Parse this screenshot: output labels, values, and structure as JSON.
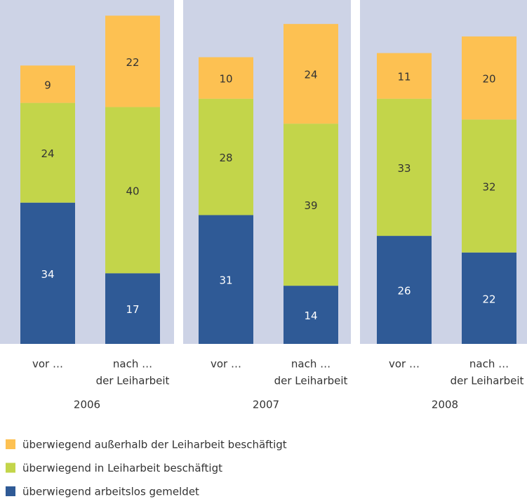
{
  "chart_data": {
    "type": "bar",
    "stacked": true,
    "groups": [
      "2006",
      "2007",
      "2008"
    ],
    "categories": [
      "vor …",
      "nach …",
      "vor …",
      "nach …",
      "vor …",
      "nach …"
    ],
    "category_notes": [
      null,
      "der Leiharbeit",
      null,
      "der Leiharbeit",
      null,
      "der Leiharbeit"
    ],
    "series": [
      {
        "name": "überwiegend arbeitslos gemeldet",
        "color": "#2f5a96",
        "values": [
          34,
          17,
          31,
          14,
          26,
          22
        ]
      },
      {
        "name": "überwiegend in Leiharbeit beschäftigt",
        "color": "#c3d54a",
        "values": [
          24,
          40,
          28,
          39,
          33,
          32
        ]
      },
      {
        "name": "überwiegend außerhalb der Leiharbeit beschäftigt",
        "color": "#fdc152",
        "values": [
          9,
          22,
          10,
          24,
          11,
          20
        ]
      }
    ]
  }
}
